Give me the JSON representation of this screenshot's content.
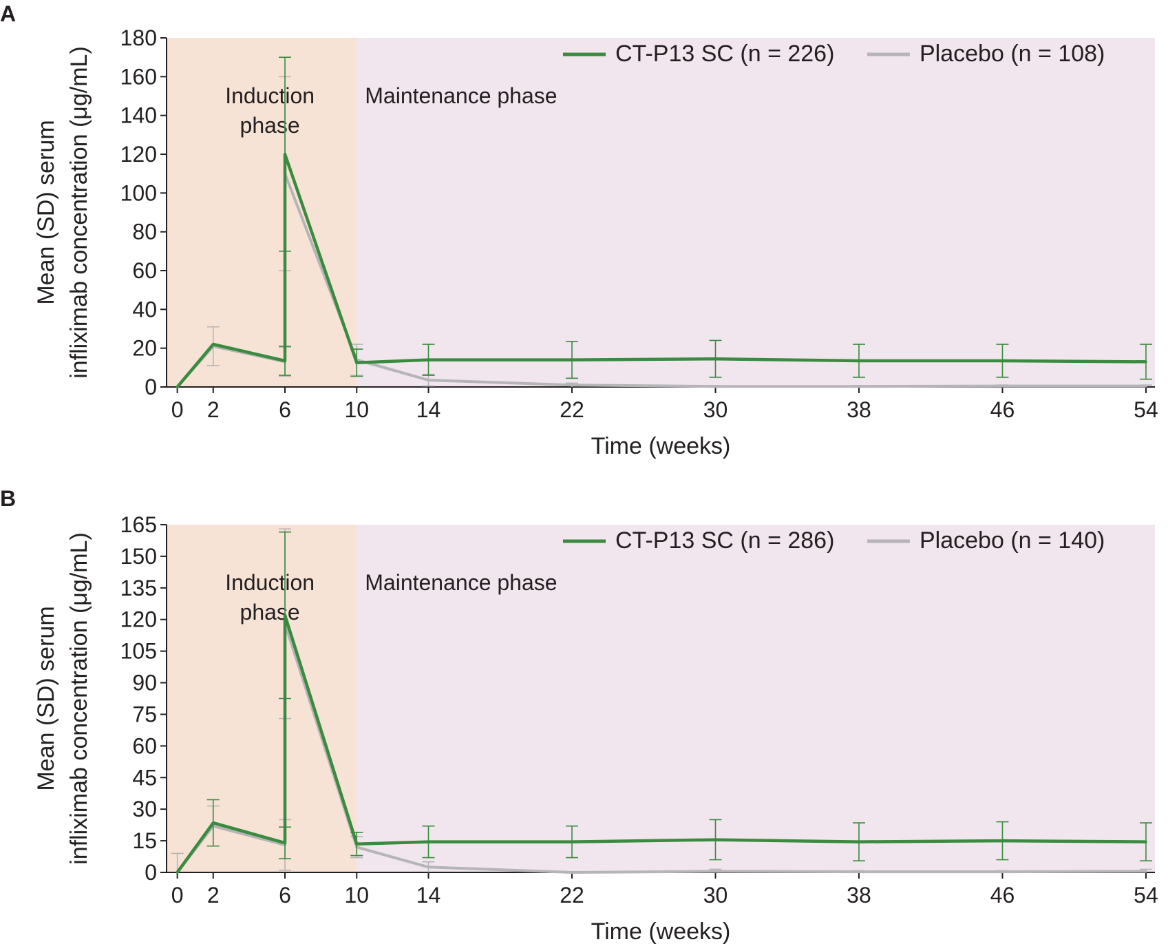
{
  "panels": [
    {
      "label": "A"
    },
    {
      "label": "B"
    }
  ],
  "colors": {
    "ctp13": "#3a8a3f",
    "placebo": "#b5b5b7",
    "induction_bg": "#f7e3d6",
    "maintenance_bg": "#f1e5ee",
    "axis": "#231f20"
  },
  "chart_data": [
    {
      "type": "line",
      "panel": "A",
      "xlabel": "Time (weeks)",
      "ylabel": "Mean (SD) serum infliximab concentration (μg/mL)",
      "ylabel_lines": [
        "Mean (SD) serum",
        "infliximab concentration (μg/mL)"
      ],
      "xticks": [
        0,
        2,
        6,
        10,
        14,
        22,
        30,
        38,
        46,
        54
      ],
      "yticks": [
        0,
        20,
        40,
        60,
        80,
        100,
        120,
        140,
        160,
        180
      ],
      "xlim": [
        -0.6,
        54.5
      ],
      "ylim": [
        0,
        180
      ],
      "phases": [
        {
          "name": "Induction phase",
          "lines": [
            "Induction",
            "phase"
          ],
          "x": [
            -0.6,
            10
          ]
        },
        {
          "name": "Maintenance phase",
          "lines": [
            "Maintenance phase"
          ],
          "x": [
            10,
            54.5
          ]
        }
      ],
      "legend_position": "top-right",
      "series": [
        {
          "name": "CT-P13 SC (n = 226)",
          "points": [
            {
              "x": 0,
              "y": 0,
              "sd": 0
            },
            {
              "x": 2,
              "y": 22,
              "sd": 0
            },
            {
              "x": 6,
              "y": 13.5,
              "sd": 7.5
            },
            {
              "x": 6,
              "y": 120,
              "sd": 50
            },
            {
              "x": 10,
              "y": 12.5,
              "sd": 7
            },
            {
              "x": 14,
              "y": 14,
              "sd": 8
            },
            {
              "x": 22,
              "y": 14,
              "sd": 9.5
            },
            {
              "x": 30,
              "y": 14.5,
              "sd": 9.5
            },
            {
              "x": 38,
              "y": 13.5,
              "sd": 8.5
            },
            {
              "x": 46,
              "y": 13.5,
              "sd": 8.5
            },
            {
              "x": 54,
              "y": 13,
              "sd": 9
            }
          ]
        },
        {
          "name": "Placebo (n = 108)",
          "points": [
            {
              "x": 0,
              "y": 0,
              "sd": 0
            },
            {
              "x": 2,
              "y": 21,
              "sd": 10
            },
            {
              "x": 6,
              "y": 13,
              "sd": 7.5
            },
            {
              "x": 6,
              "y": 110,
              "sd": 50
            },
            {
              "x": 10,
              "y": 14,
              "sd": 8
            },
            {
              "x": 14,
              "y": 3.5,
              "sd": 3
            },
            {
              "x": 22,
              "y": 1,
              "sd": 1
            },
            {
              "x": 30,
              "y": 0.3,
              "sd": 0.5
            },
            {
              "x": 38,
              "y": 0.3,
              "sd": 0.5
            },
            {
              "x": 46,
              "y": 0.5,
              "sd": 0.5
            },
            {
              "x": 54,
              "y": 0.5,
              "sd": 0.5
            }
          ]
        }
      ]
    },
    {
      "type": "line",
      "panel": "B",
      "xlabel": "Time (weeks)",
      "ylabel": "Mean (SD) serum infliximab concentration (μg/mL)",
      "ylabel_lines": [
        "Mean (SD) serum",
        "infliximab concentration (μg/mL)"
      ],
      "xticks": [
        0,
        2,
        6,
        10,
        14,
        22,
        30,
        38,
        46,
        54
      ],
      "yticks": [
        0,
        15,
        30,
        45,
        60,
        75,
        90,
        105,
        120,
        135,
        150,
        165
      ],
      "xlim": [
        -0.6,
        54.5
      ],
      "ylim": [
        0,
        165
      ],
      "phases": [
        {
          "name": "Induction phase",
          "lines": [
            "Induction",
            "phase"
          ],
          "x": [
            -0.6,
            10
          ]
        },
        {
          "name": "Maintenance phase",
          "lines": [
            "Maintenance phase"
          ],
          "x": [
            10,
            54.5
          ]
        }
      ],
      "legend_position": "top-right",
      "series": [
        {
          "name": "CT-P13 SC (n = 286)",
          "points": [
            {
              "x": 0,
              "y": 0,
              "sd": 0
            },
            {
              "x": 2,
              "y": 23.5,
              "sd": 11
            },
            {
              "x": 6,
              "y": 14,
              "sd": 7.5
            },
            {
              "x": 6,
              "y": 122,
              "sd": 39.5
            },
            {
              "x": 10,
              "y": 13.5,
              "sd": 5.5
            },
            {
              "x": 14,
              "y": 14.5,
              "sd": 7.5
            },
            {
              "x": 22,
              "y": 14.5,
              "sd": 7.5
            },
            {
              "x": 30,
              "y": 15.5,
              "sd": 9.5
            },
            {
              "x": 38,
              "y": 14.5,
              "sd": 9
            },
            {
              "x": 46,
              "y": 15,
              "sd": 9
            },
            {
              "x": 54,
              "y": 14.5,
              "sd": 9
            }
          ]
        },
        {
          "name": "Placebo (n = 140)",
          "points": [
            {
              "x": 0,
              "y": 0,
              "sd": 9
            },
            {
              "x": 2,
              "y": 22,
              "sd": 9.5
            },
            {
              "x": 6,
              "y": 13,
              "sd": 12
            },
            {
              "x": 6,
              "y": 118,
              "sd": 45
            },
            {
              "x": 10,
              "y": 12,
              "sd": 5
            },
            {
              "x": 14,
              "y": 2.5,
              "sd": 2.5
            },
            {
              "x": 22,
              "y": 0,
              "sd": 0
            },
            {
              "x": 30,
              "y": 0.5,
              "sd": 1
            },
            {
              "x": 38,
              "y": 0.3,
              "sd": 0.5
            },
            {
              "x": 46,
              "y": 0.3,
              "sd": 0.5
            },
            {
              "x": 54,
              "y": 0.5,
              "sd": 1
            }
          ]
        }
      ]
    }
  ]
}
